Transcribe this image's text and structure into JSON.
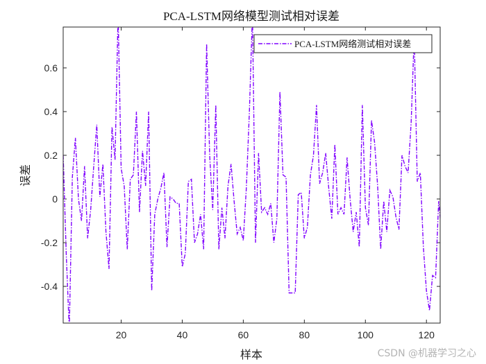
{
  "chart_data": {
    "type": "line",
    "title": "PCA-LSTM网络模型测试相对误差",
    "xlabel": "样本",
    "ylabel": "误差",
    "xlim": [
      1,
      124.5
    ],
    "ylim": [
      -0.568,
      0.787
    ],
    "xticks": [
      20,
      40,
      60,
      80,
      100,
      120
    ],
    "yticks": [
      -0.4,
      -0.2,
      0,
      0.2,
      0.4,
      0.6
    ],
    "ytick_labels": [
      "-0.4",
      "-0.2",
      "0",
      "0.2",
      "0.4",
      "0.6"
    ],
    "grid": false,
    "legend_position": "upper right",
    "series": [
      {
        "name": "PCA-LSTM网络测试相对误差",
        "color": "#7F00FF",
        "line_style": "dash-dot",
        "x": [
          1,
          2,
          3,
          4,
          5,
          6,
          7,
          8,
          9,
          10,
          11,
          12,
          13,
          14,
          15,
          16,
          17,
          18,
          19,
          20,
          21,
          22,
          23,
          24,
          25,
          26,
          27,
          28,
          29,
          30,
          31,
          32,
          33,
          34,
          35,
          36,
          37,
          38,
          39,
          40,
          41,
          42,
          43,
          44,
          45,
          46,
          47,
          48,
          49,
          50,
          51,
          52,
          53,
          54,
          55,
          56,
          57,
          58,
          59,
          60,
          61,
          62,
          63,
          64,
          65,
          66,
          67,
          68,
          69,
          70,
          71,
          72,
          73,
          74,
          75,
          76,
          77,
          78,
          79,
          80,
          81,
          82,
          83,
          84,
          85,
          86,
          87,
          88,
          89,
          90,
          91,
          92,
          93,
          94,
          95,
          96,
          97,
          98,
          99,
          100,
          101,
          102,
          103,
          104,
          105,
          106,
          107,
          108,
          109,
          110,
          111,
          112,
          113,
          114,
          115,
          116,
          117,
          118,
          119,
          120,
          121,
          122,
          123,
          124,
          125
        ],
        "values": [
          0.2,
          -0.25,
          -0.6,
          0.1,
          0.28,
          0.0,
          -0.1,
          0.15,
          -0.18,
          -0.05,
          0.15,
          0.34,
          0.01,
          0.16,
          -0.15,
          -0.32,
          0.33,
          0.18,
          0.85,
          0.14,
          0.06,
          -0.23,
          0.09,
          0.11,
          0.4,
          -0.06,
          0.22,
          0.06,
          0.4,
          -0.42,
          -0.07,
          0.0,
          0.05,
          0.12,
          -0.22,
          0.01,
          0.0,
          -0.02,
          -0.02,
          -0.31,
          -0.25,
          0.08,
          0.09,
          -0.2,
          -0.16,
          -0.07,
          -0.23,
          0.71,
          0.2,
          -0.05,
          0.43,
          -0.23,
          -0.04,
          -0.18,
          0.06,
          0.16,
          -0.01,
          -0.16,
          -0.13,
          -0.19,
          0.05,
          0.4,
          0.85,
          -0.2,
          0.21,
          -0.06,
          -0.04,
          -0.07,
          -0.02,
          -0.2,
          -0.09,
          0.49,
          0.11,
          0.1,
          -0.43,
          -0.43,
          -0.43,
          0.02,
          0.03,
          -0.18,
          -0.13,
          0.11,
          0.2,
          0.43,
          0.07,
          0.12,
          0.21,
          0.05,
          -0.09,
          0.25,
          -0.07,
          -0.04,
          -0.07,
          0.19,
          0.0,
          -0.15,
          -0.06,
          -0.22,
          0.43,
          -0.04,
          -0.12,
          0.36,
          0.26,
          0.06,
          -0.23,
          -0.01,
          -0.15,
          0.04,
          0.01,
          -0.08,
          -0.14,
          0.2,
          0.15,
          0.12,
          0.35,
          0.75,
          0.08,
          0.12,
          -0.22,
          -0.42,
          -0.51,
          -0.35,
          -0.36,
          -0.01,
          -0.16
        ]
      }
    ]
  },
  "watermark": "CSDN @机器学习之心"
}
